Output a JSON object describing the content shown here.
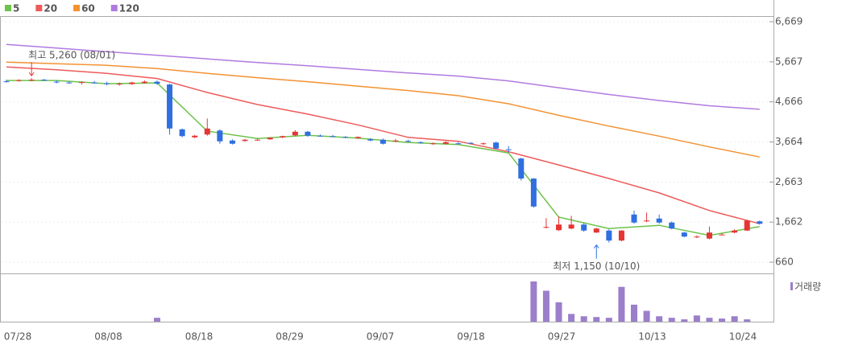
{
  "chart_data": {
    "type": "candlestick",
    "series": [
      {
        "name": "5",
        "color": "#6cc24a",
        "x": [
          0,
          4,
          8,
          12,
          16,
          20,
          24,
          28,
          32,
          36,
          40,
          44,
          48,
          52,
          56,
          60
        ],
        "values": [
          5200,
          5200,
          5120,
          5140,
          3935,
          3750,
          3830,
          3760,
          3650,
          3600,
          3390,
          1785,
          1500,
          1580,
          1330,
          1550
        ]
      },
      {
        "name": "20",
        "color": "#ee5a5a",
        "x": [
          0,
          4,
          8,
          12,
          16,
          20,
          24,
          28,
          32,
          36,
          40,
          44,
          48,
          52,
          56,
          60
        ],
        "values": [
          5540,
          5470,
          5380,
          5250,
          4900,
          4600,
          4360,
          4090,
          3780,
          3680,
          3420,
          3090,
          2750,
          2390,
          1950,
          1620
        ]
      },
      {
        "name": "60",
        "color": "#f39232",
        "x": [
          0,
          4,
          8,
          12,
          16,
          20,
          24,
          28,
          32,
          36,
          40,
          44,
          48,
          52,
          56,
          60
        ],
        "values": [
          5660,
          5620,
          5580,
          5500,
          5380,
          5270,
          5170,
          5060,
          4950,
          4820,
          4620,
          4330,
          4060,
          3810,
          3540,
          3290
        ]
      },
      {
        "name": "120",
        "color": "#b07ae0",
        "x": [
          0,
          4,
          8,
          12,
          16,
          20,
          24,
          28,
          32,
          36,
          40,
          44,
          48,
          52,
          56,
          60
        ],
        "values": [
          6100,
          6010,
          5920,
          5830,
          5740,
          5650,
          5570,
          5480,
          5390,
          5310,
          5190,
          5020,
          4850,
          4700,
          4570,
          4480
        ]
      }
    ],
    "ohlc": [
      [
        5180,
        5220,
        5150,
        5170
      ],
      [
        5190,
        5230,
        5170,
        5210
      ],
      [
        5200,
        5260,
        5180,
        5220
      ],
      [
        5220,
        5240,
        5190,
        5200
      ],
      [
        5170,
        5200,
        5130,
        5150
      ],
      [
        5150,
        5180,
        5120,
        5140
      ],
      [
        5140,
        5180,
        5100,
        5160
      ],
      [
        5150,
        5190,
        5120,
        5130
      ],
      [
        5130,
        5170,
        5080,
        5110
      ],
      [
        5100,
        5150,
        5070,
        5120
      ],
      [
        5110,
        5170,
        5090,
        5150
      ],
      [
        5140,
        5200,
        5120,
        5170
      ],
      [
        5170,
        5200,
        5090,
        5120
      ],
      [
        5100,
        5120,
        3850,
        4000
      ],
      [
        3980,
        4000,
        3780,
        3810
      ],
      [
        3780,
        3840,
        3760,
        3820
      ],
      [
        3850,
        4250,
        3820,
        4000
      ],
      [
        3950,
        3980,
        3620,
        3680
      ],
      [
        3700,
        3730,
        3600,
        3620
      ],
      [
        3690,
        3740,
        3670,
        3720
      ],
      [
        3720,
        3750,
        3700,
        3720
      ],
      [
        3730,
        3780,
        3720,
        3770
      ],
      [
        3780,
        3820,
        3760,
        3810
      ],
      [
        3830,
        3960,
        3810,
        3920
      ],
      [
        3920,
        3940,
        3790,
        3820
      ],
      [
        3820,
        3850,
        3800,
        3810
      ],
      [
        3810,
        3840,
        3790,
        3800
      ],
      [
        3790,
        3810,
        3760,
        3780
      ],
      [
        3760,
        3800,
        3740,
        3790
      ],
      [
        3730,
        3760,
        3680,
        3700
      ],
      [
        3720,
        3750,
        3600,
        3620
      ],
      [
        3680,
        3740,
        3660,
        3700
      ],
      [
        3690,
        3720,
        3660,
        3670
      ],
      [
        3660,
        3680,
        3620,
        3640
      ],
      [
        3620,
        3650,
        3590,
        3630
      ],
      [
        3620,
        3680,
        3600,
        3660
      ],
      [
        3630,
        3660,
        3600,
        3620
      ],
      [
        3640,
        3660,
        3610,
        3620
      ],
      [
        3620,
        3650,
        3590,
        3630
      ],
      [
        3650,
        3670,
        3480,
        3500
      ],
      [
        3480,
        3560,
        3400,
        3470
      ],
      [
        3250,
        3270,
        2700,
        2750
      ],
      [
        2750,
        2760,
        2020,
        2050
      ],
      [
        1520,
        1760,
        1500,
        1540
      ],
      [
        1460,
        1800,
        1440,
        1600
      ],
      [
        1500,
        1820,
        1480,
        1600
      ],
      [
        1600,
        1640,
        1420,
        1450
      ],
      [
        1400,
        1520,
        1390,
        1500
      ],
      [
        1450,
        1480,
        1150,
        1200
      ],
      [
        1200,
        1460,
        1180,
        1450
      ],
      [
        1850,
        1950,
        1620,
        1650
      ],
      [
        1680,
        1900,
        1660,
        1700
      ],
      [
        1750,
        1850,
        1620,
        1650
      ],
      [
        1650,
        1680,
        1480,
        1500
      ],
      [
        1400,
        1420,
        1280,
        1300
      ],
      [
        1300,
        1330,
        1260,
        1300
      ],
      [
        1250,
        1550,
        1230,
        1400
      ],
      [
        1350,
        1380,
        1330,
        1350
      ],
      [
        1400,
        1480,
        1380,
        1450
      ],
      [
        1450,
        1720,
        1440,
        1700
      ],
      [
        1680,
        1700,
        1600,
        1620
      ]
    ],
    "volume": {
      "name": "거래량",
      "color": "#9b7fca",
      "values": [
        0,
        0,
        0,
        0,
        0,
        0,
        0,
        0,
        0,
        0,
        0,
        0,
        5,
        0,
        0,
        0,
        0,
        0,
        0,
        0,
        0,
        0,
        0,
        0,
        0,
        0,
        0,
        0,
        0,
        0,
        0,
        0,
        0,
        0,
        0,
        0,
        0,
        0,
        0,
        0,
        0,
        0,
        52,
        40,
        25,
        10,
        7,
        6,
        5,
        45,
        22,
        14,
        7,
        5,
        3,
        8,
        5,
        4,
        7,
        3,
        0
      ]
    },
    "up_color": "#e53535",
    "down_color": "#2f6fe0",
    "ylim": [
      379,
      6810
    ],
    "yticks": [
      {
        "value": 660,
        "label": "660"
      },
      {
        "value": 1662,
        "label": "1,662"
      },
      {
        "value": 2663,
        "label": "2,663"
      },
      {
        "value": 3664,
        "label": "3,664"
      },
      {
        "value": 4666,
        "label": "4,666"
      },
      {
        "value": 5667,
        "label": "5,667"
      },
      {
        "value": 6669,
        "label": "6,669"
      }
    ],
    "date_labels": [
      "07/28",
      "08/08",
      "08/18",
      "08/29",
      "09/07",
      "09/18",
      "09/27",
      "10/13",
      "10/24"
    ],
    "annotations": [
      {
        "text": "최고 5,260 (08/01)",
        "index": 2,
        "value": 5260,
        "color": "#e53535"
      },
      {
        "text": "최저 1,150 (10/10)",
        "index": 47,
        "value": 1150,
        "color": "#2f6fe0"
      }
    ]
  }
}
